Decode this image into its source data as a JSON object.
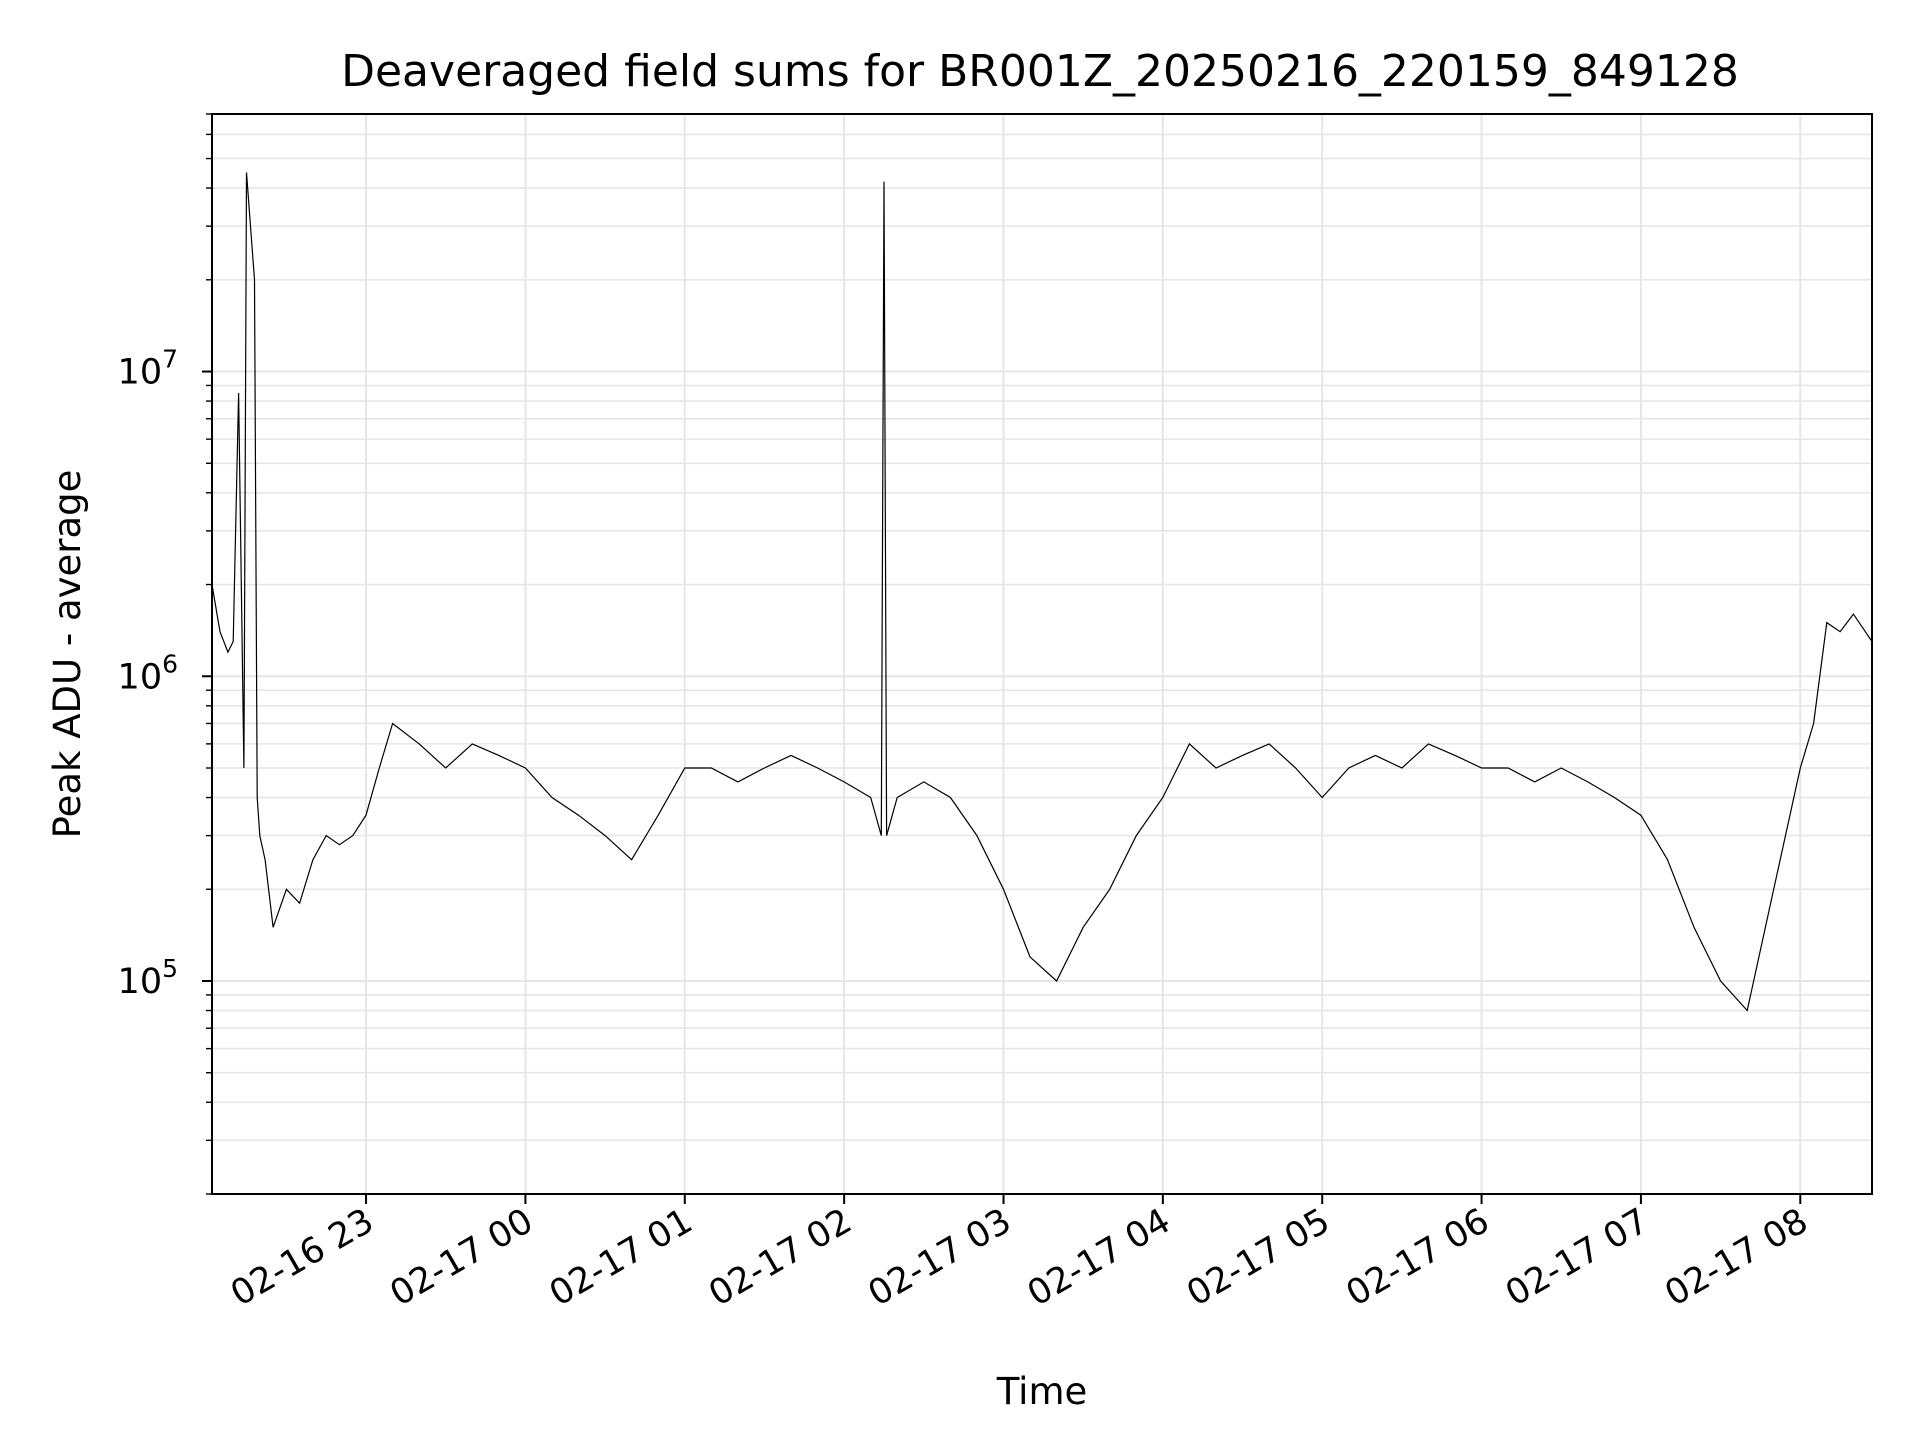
{
  "chart_data": {
    "type": "line",
    "title": "Deaveraged field sums for BR001Z_20250216_220159_849128",
    "xlabel": "Time",
    "ylabel": "Peak ADU - average",
    "yscale": "log",
    "grid": true,
    "line_color": "#000000",
    "grid_color": "#e6e6e6",
    "xlim": [
      "2025-02-16 22:02",
      "2025-02-17 08:27"
    ],
    "ylim": [
      20000,
      70000000
    ],
    "x_ticks": [
      {
        "value": "2025-02-16 23:00",
        "label": "02-16 23"
      },
      {
        "value": "2025-02-17 00:00",
        "label": "02-17 00"
      },
      {
        "value": "2025-02-17 01:00",
        "label": "02-17 01"
      },
      {
        "value": "2025-02-17 02:00",
        "label": "02-17 02"
      },
      {
        "value": "2025-02-17 03:00",
        "label": "02-17 03"
      },
      {
        "value": "2025-02-17 04:00",
        "label": "02-17 04"
      },
      {
        "value": "2025-02-17 05:00",
        "label": "02-17 05"
      },
      {
        "value": "2025-02-17 06:00",
        "label": "02-17 06"
      },
      {
        "value": "2025-02-17 07:00",
        "label": "02-17 07"
      },
      {
        "value": "2025-02-17 08:00",
        "label": "02-17 08"
      }
    ],
    "y_ticks": [
      {
        "value": 100000,
        "base": "10",
        "exp": "5"
      },
      {
        "value": 1000000,
        "base": "10",
        "exp": "6"
      },
      {
        "value": 10000000,
        "base": "10",
        "exp": "7"
      }
    ],
    "series": [
      {
        "x": [
          "2025-02-16 22:02",
          "2025-02-16 22:05",
          "2025-02-16 22:08",
          "2025-02-16 22:10",
          "2025-02-16 22:12",
          "2025-02-16 22:14",
          "2025-02-16 22:15",
          "2025-02-16 22:18",
          "2025-02-16 22:19",
          "2025-02-16 22:20",
          "2025-02-16 22:22",
          "2025-02-16 22:25",
          "2025-02-16 22:30",
          "2025-02-16 22:35",
          "2025-02-16 22:40",
          "2025-02-16 22:45",
          "2025-02-16 22:50",
          "2025-02-16 22:55",
          "2025-02-16 23:00",
          "2025-02-16 23:05",
          "2025-02-16 23:10",
          "2025-02-16 23:20",
          "2025-02-16 23:30",
          "2025-02-16 23:40",
          "2025-02-16 23:50",
          "2025-02-17 00:00",
          "2025-02-17 00:10",
          "2025-02-17 00:20",
          "2025-02-17 00:30",
          "2025-02-17 00:40",
          "2025-02-17 00:50",
          "2025-02-17 01:00",
          "2025-02-17 01:10",
          "2025-02-17 01:20",
          "2025-02-17 01:30",
          "2025-02-17 01:40",
          "2025-02-17 01:50",
          "2025-02-17 02:00",
          "2025-02-17 02:10",
          "2025-02-17 02:14",
          "2025-02-17 02:15",
          "2025-02-17 02:16",
          "2025-02-17 02:20",
          "2025-02-17 02:30",
          "2025-02-17 02:40",
          "2025-02-17 02:50",
          "2025-02-17 03:00",
          "2025-02-17 03:10",
          "2025-02-17 03:20",
          "2025-02-17 03:30",
          "2025-02-17 03:40",
          "2025-02-17 03:50",
          "2025-02-17 04:00",
          "2025-02-17 04:10",
          "2025-02-17 04:20",
          "2025-02-17 04:30",
          "2025-02-17 04:40",
          "2025-02-17 04:50",
          "2025-02-17 05:00",
          "2025-02-17 05:10",
          "2025-02-17 05:20",
          "2025-02-17 05:30",
          "2025-02-17 05:40",
          "2025-02-17 05:50",
          "2025-02-17 06:00",
          "2025-02-17 06:10",
          "2025-02-17 06:20",
          "2025-02-17 06:30",
          "2025-02-17 06:40",
          "2025-02-17 06:50",
          "2025-02-17 07:00",
          "2025-02-17 07:10",
          "2025-02-17 07:20",
          "2025-02-17 07:30",
          "2025-02-17 07:40",
          "2025-02-17 07:50",
          "2025-02-17 08:00",
          "2025-02-17 08:05",
          "2025-02-17 08:10",
          "2025-02-17 08:15",
          "2025-02-17 08:20",
          "2025-02-17 08:27"
        ],
        "y": [
          2000000,
          1400000,
          1200000,
          1300000,
          8500000,
          500000,
          45000000,
          20000000,
          400000,
          300000,
          250000,
          150000,
          200000,
          180000,
          250000,
          300000,
          280000,
          300000,
          350000,
          500000,
          700000,
          600000,
          500000,
          600000,
          550000,
          500000,
          400000,
          350000,
          300000,
          250000,
          350000,
          500000,
          500000,
          450000,
          500000,
          550000,
          500000,
          450000,
          400000,
          300000,
          42000000,
          300000,
          400000,
          450000,
          400000,
          300000,
          200000,
          120000,
          100000,
          150000,
          200000,
          300000,
          400000,
          600000,
          500000,
          550000,
          600000,
          500000,
          400000,
          500000,
          550000,
          500000,
          600000,
          550000,
          500000,
          500000,
          450000,
          500000,
          450000,
          400000,
          350000,
          250000,
          150000,
          100000,
          80000,
          200000,
          500000,
          700000,
          1500000,
          1400000,
          1600000,
          1300000
        ]
      }
    ]
  }
}
